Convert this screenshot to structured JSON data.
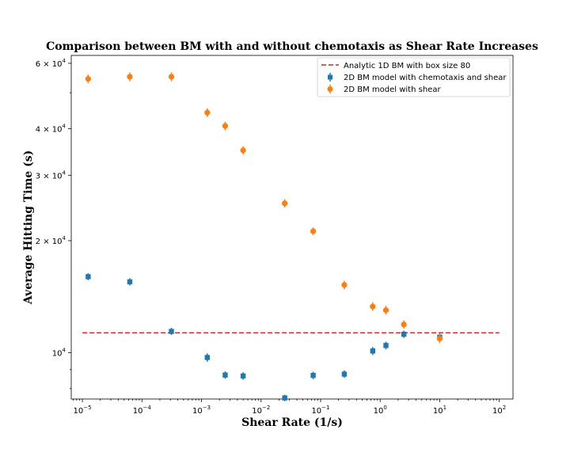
{
  "chart_data": {
    "type": "scatter",
    "title": "Comparison between BM with and without chemotaxis as Shear Rate Increases",
    "xlabel": "Shear Rate (1/s)",
    "ylabel": "Average Hitting Time (s)",
    "xscale": "log",
    "yscale": "log",
    "xlim": [
      6.5e-06,
      170
    ],
    "ylim": [
      7500,
      63000
    ],
    "x_ticks": [
      {
        "value": 1e-05,
        "base": "10",
        "exp": "−5"
      },
      {
        "value": 0.0001,
        "base": "10",
        "exp": "−4"
      },
      {
        "value": 0.001,
        "base": "10",
        "exp": "−3"
      },
      {
        "value": 0.01,
        "base": "10",
        "exp": "−2"
      },
      {
        "value": 0.1,
        "base": "10",
        "exp": "−1"
      },
      {
        "value": 1,
        "base": "10",
        "exp": "0"
      },
      {
        "value": 10,
        "base": "10",
        "exp": "1"
      },
      {
        "value": 100,
        "base": "10",
        "exp": "2"
      }
    ],
    "y_ticks": [
      {
        "value": 10000,
        "coef": "",
        "base": "10",
        "exp": "4"
      },
      {
        "value": 20000,
        "coef": "2 × ",
        "base": "10",
        "exp": "4"
      },
      {
        "value": 30000,
        "coef": "3 × ",
        "base": "10",
        "exp": "4"
      },
      {
        "value": 40000,
        "coef": "4 × ",
        "base": "10",
        "exp": "4"
      },
      {
        "value": 60000,
        "coef": "6 × ",
        "base": "10",
        "exp": "4"
      }
    ],
    "reference_line": {
      "name": "Analytic 1D BM with box size 80",
      "y": 11300,
      "x_range": [
        1e-05,
        100
      ],
      "color": "#d62728"
    },
    "series": [
      {
        "name": "2D BM model with chemotaxis and shear",
        "marker": "square",
        "color": "#1f77b4",
        "x": [
          1.25e-05,
          6.25e-05,
          0.0003125,
          0.00125,
          0.0025,
          0.005,
          0.025,
          0.075,
          0.25,
          0.75,
          1.25,
          2.5,
          10
        ],
        "y": [
          16000,
          15500,
          11400,
          9700,
          8700,
          8650,
          7550,
          8680,
          8750,
          10100,
          10450,
          11200,
          11000
        ],
        "err": [
          350,
          350,
          250,
          250,
          200,
          200,
          150,
          200,
          200,
          250,
          250,
          250,
          250
        ]
      },
      {
        "name": "2D BM model with shear",
        "marker": "circle",
        "color": "#ff7f0e",
        "x": [
          1.25e-05,
          6.25e-05,
          0.0003125,
          0.00125,
          0.0025,
          0.005,
          0.025,
          0.075,
          0.25,
          0.75,
          1.25,
          2.5,
          10
        ],
        "y": [
          54500,
          55200,
          55200,
          44200,
          40700,
          35000,
          25200,
          21200,
          15200,
          13300,
          13000,
          11900,
          10900
        ],
        "err": [
          1500,
          1500,
          1500,
          1200,
          1100,
          900,
          650,
          500,
          400,
          350,
          350,
          300,
          300
        ]
      }
    ],
    "legend": {
      "position": "top-right",
      "entries": [
        "Analytic 1D BM with box size 80",
        "2D BM model with chemotaxis and shear",
        "2D BM model with shear"
      ]
    }
  }
}
